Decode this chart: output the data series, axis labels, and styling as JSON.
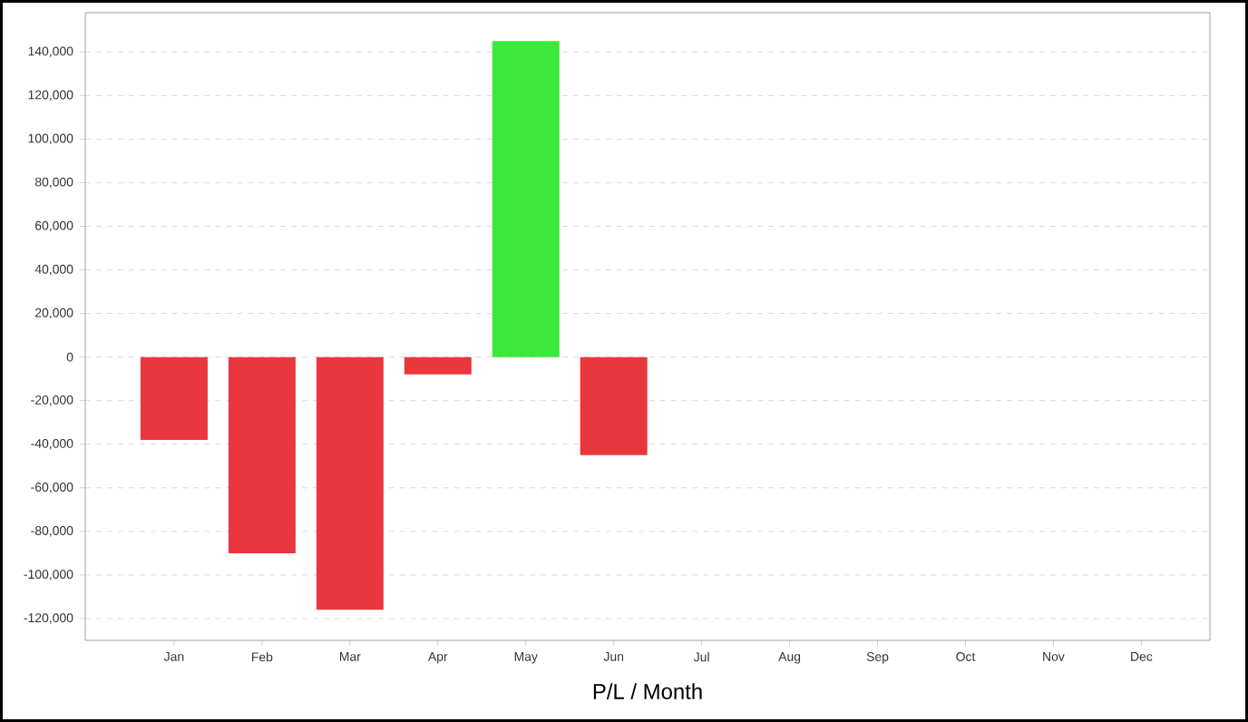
{
  "chart_data": {
    "type": "bar",
    "xlabel": "P/L / Month",
    "categories": [
      "Jan",
      "Feb",
      "Mar",
      "Apr",
      "May",
      "Jun",
      "Jul",
      "Aug",
      "Sep",
      "Oct",
      "Nov",
      "Dec"
    ],
    "values": [
      -38000,
      -90000,
      -116000,
      -8000,
      145000,
      -45000,
      null,
      null,
      null,
      null,
      null,
      null
    ],
    "colors": [
      "#e8383d",
      "#e8383d",
      "#e8383d",
      "#e8383d",
      "#3de83a",
      "#e8383d",
      "#e8383d",
      "#e8383d",
      "#e8383d",
      "#e8383d",
      "#e8383d",
      "#e8383d"
    ],
    "ylim": [
      -130000,
      158000
    ],
    "yticks": [
      {
        "value": -120000,
        "label": "-120,000"
      },
      {
        "value": -100000,
        "label": "-100,000"
      },
      {
        "value": -80000,
        "label": "-80,000"
      },
      {
        "value": -60000,
        "label": "-60,000"
      },
      {
        "value": -40000,
        "label": "-40,000"
      },
      {
        "value": -20000,
        "label": "-20,000"
      },
      0,
      {
        "value": 20000,
        "label": "20,000"
      },
      {
        "value": 40000,
        "label": "40,000"
      },
      {
        "value": 60000,
        "label": "60,000"
      },
      {
        "value": 80000,
        "label": "80,000"
      },
      {
        "value": 100000,
        "label": "100,000"
      },
      {
        "value": 120000,
        "label": "120,000"
      },
      {
        "value": 140000,
        "label": "140,000"
      }
    ],
    "grid": "y"
  }
}
